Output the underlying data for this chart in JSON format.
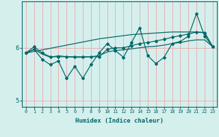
{
  "xlabel": "Humidex (Indice chaleur)",
  "background_color": "#d5efed",
  "grid_color": "#e8b0b0",
  "line_color": "#006868",
  "x_values": [
    0,
    1,
    2,
    3,
    4,
    5,
    6,
    7,
    8,
    9,
    10,
    11,
    12,
    13,
    14,
    15,
    16,
    17,
    18,
    19,
    20,
    21,
    22,
    23
  ],
  "line_straight_y": [
    5.9,
    5.93,
    5.96,
    5.99,
    6.02,
    6.05,
    6.08,
    6.11,
    6.14,
    6.17,
    6.19,
    6.21,
    6.23,
    6.25,
    6.26,
    6.27,
    6.28,
    6.29,
    6.3,
    6.3,
    6.3,
    6.3,
    6.29,
    6.02
  ],
  "line_mid_y": [
    5.9,
    5.97,
    5.88,
    5.82,
    5.85,
    5.83,
    5.82,
    5.82,
    5.83,
    5.85,
    5.92,
    5.95,
    5.96,
    5.98,
    6.0,
    6.02,
    6.03,
    6.05,
    6.08,
    6.1,
    6.13,
    6.15,
    6.15,
    6.02
  ],
  "line_upper_y": [
    5.9,
    6.02,
    5.9,
    5.83,
    5.83,
    5.83,
    5.83,
    5.83,
    5.83,
    5.83,
    5.97,
    6.0,
    6.0,
    6.04,
    6.08,
    6.1,
    6.13,
    6.16,
    6.2,
    6.23,
    6.26,
    6.3,
    6.28,
    6.02
  ],
  "line_volatile_y": [
    5.9,
    5.97,
    5.78,
    5.68,
    5.75,
    5.42,
    5.65,
    5.42,
    5.68,
    5.9,
    6.08,
    5.95,
    5.82,
    6.1,
    6.38,
    5.85,
    5.7,
    5.82,
    6.08,
    6.12,
    6.22,
    6.65,
    6.22,
    6.02
  ],
  "ylim": [
    4.88,
    6.88
  ],
  "xlim": [
    -0.5,
    23.5
  ],
  "yticks": [
    5,
    6
  ],
  "xticks": [
    0,
    1,
    2,
    3,
    4,
    5,
    6,
    7,
    8,
    9,
    10,
    11,
    12,
    13,
    14,
    15,
    16,
    17,
    18,
    19,
    20,
    21,
    22,
    23
  ]
}
